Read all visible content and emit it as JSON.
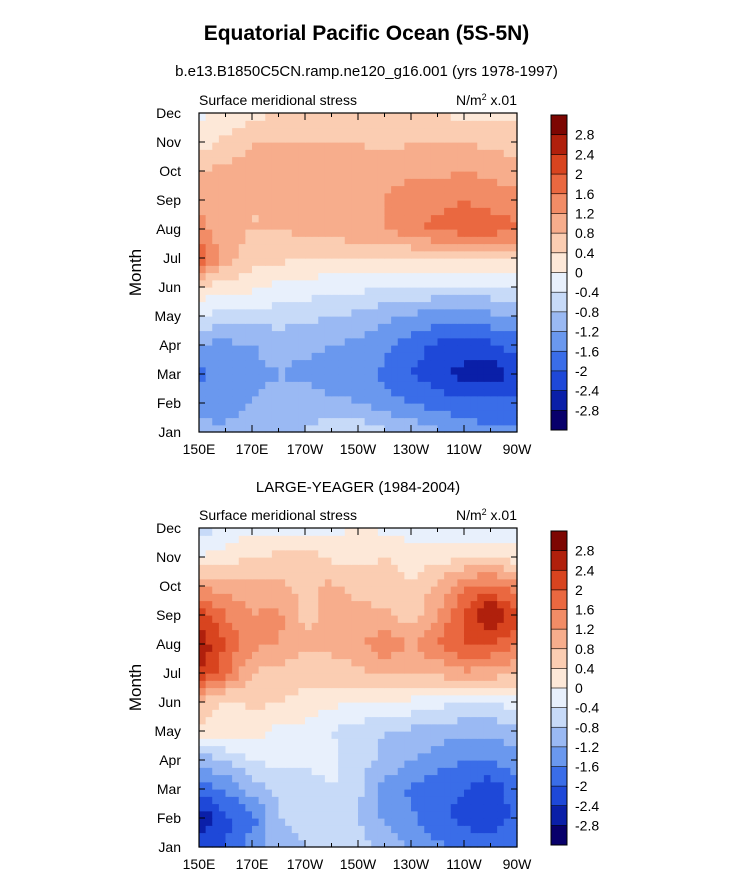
{
  "main_title": "Equatorial Pacific Ocean (5S-5N)",
  "subtitle": "b.e13.B1850C5CN.ramp.ne120_g16.001 (yrs 1978-1997)",
  "colors": {
    "scale": [
      "#08006b",
      "#0a1fa8",
      "#1e48d8",
      "#3a6de8",
      "#6a98ee",
      "#9ab9f3",
      "#c7daf8",
      "#e8f0fc",
      "#fde8d8",
      "#fbcdb2",
      "#f7ad8c",
      "#f28c66",
      "#ea6840",
      "#d8441f",
      "#b0200c",
      "#7d0602"
    ]
  },
  "chart_data": [
    {
      "type": "heatmap",
      "title": "",
      "left_label": "Surface meridional stress",
      "right_label_main": "N/m",
      "right_label_exp": "2",
      "right_label_tail": " x.01",
      "ylabel": "Month",
      "xticks": [
        "150E",
        "170E",
        "170W",
        "150W",
        "130W",
        "110W",
        "90W"
      ],
      "yticks": [
        "Jan",
        "Feb",
        "Mar",
        "Apr",
        "May",
        "Jun",
        "Jul",
        "Aug",
        "Sep",
        "Oct",
        "Nov",
        "Dec"
      ],
      "x": [
        150,
        160,
        170,
        180,
        190,
        200,
        210,
        220,
        230,
        240,
        250,
        260,
        270
      ],
      "y": [
        1,
        2,
        3,
        4,
        5,
        6,
        7,
        8,
        9,
        10,
        11,
        12
      ],
      "z": [
        [
          -1.0,
          -1.1,
          -1.0,
          -0.9,
          -0.8,
          -0.5,
          -0.5,
          -0.7,
          -0.9,
          -1.1,
          -1.3,
          -1.5,
          -1.5
        ],
        [
          -1.5,
          -1.4,
          -1.2,
          -1.1,
          -1.0,
          -1.1,
          -1.2,
          -1.4,
          -1.6,
          -1.8,
          -1.9,
          -1.9,
          -1.8
        ],
        [
          -1.7,
          -1.4,
          -1.3,
          -1.2,
          -1.3,
          -1.4,
          -1.5,
          -1.7,
          -2.0,
          -2.2,
          -2.6,
          -2.7,
          -2.3
        ],
        [
          -1.3,
          -1.3,
          -1.2,
          -1.1,
          -1.1,
          -1.2,
          -1.3,
          -1.5,
          -1.8,
          -2.1,
          -2.1,
          -2.1,
          -1.8
        ],
        [
          -0.4,
          -0.6,
          -0.6,
          -0.6,
          -0.7,
          -0.8,
          -0.9,
          -1.1,
          -1.3,
          -1.4,
          -1.4,
          -1.3,
          -1.2
        ],
        [
          0.3,
          0.2,
          0.1,
          -0.1,
          -0.2,
          -0.3,
          -0.3,
          -0.4,
          -0.4,
          -0.5,
          -0.5,
          -0.5,
          -0.4
        ],
        [
          2.0,
          1.0,
          0.6,
          0.5,
          0.4,
          0.4,
          0.4,
          0.4,
          0.4,
          0.5,
          0.4,
          0.4,
          0.4
        ],
        [
          1.4,
          0.9,
          0.8,
          0.8,
          0.9,
          1.0,
          1.1,
          1.2,
          1.5,
          1.7,
          1.8,
          1.8,
          1.7
        ],
        [
          1.1,
          0.8,
          0.8,
          0.8,
          0.9,
          1.0,
          1.1,
          1.2,
          1.5,
          1.5,
          1.6,
          1.5,
          1.3
        ],
        [
          0.8,
          0.9,
          1.0,
          1.0,
          1.0,
          1.0,
          1.0,
          1.0,
          1.1,
          1.1,
          1.2,
          1.1,
          1.0
        ],
        [
          0.2,
          0.5,
          0.8,
          0.8,
          0.8,
          0.8,
          0.8,
          0.7,
          0.8,
          0.8,
          0.8,
          0.7,
          0.6
        ],
        [
          -0.1,
          0.1,
          0.3,
          0.4,
          0.5,
          0.5,
          0.5,
          0.4,
          0.4,
          0.4,
          0.3,
          0.3,
          0.3
        ]
      ],
      "levels": [
        -2.8,
        -2.4,
        -2.0,
        -1.6,
        -1.2,
        -0.8,
        -0.4,
        0,
        0.4,
        0.8,
        1.2,
        1.6,
        2.0,
        2.4,
        2.8
      ],
      "colorbar_labels": [
        "2.8",
        "2.4",
        "2",
        "1.6",
        "1.2",
        "0.8",
        "0.4",
        "0",
        "-0.4",
        "-0.8",
        "-1.2",
        "-1.6",
        "-2",
        "-2.4",
        "-2.8"
      ]
    },
    {
      "type": "heatmap",
      "title": "LARGE-YEAGER (1984-2004)",
      "left_label": "Surface meridional stress",
      "right_label_main": "N/m",
      "right_label_exp": "2",
      "right_label_tail": " x.01",
      "ylabel": "Month",
      "xticks": [
        "150E",
        "170E",
        "170W",
        "150W",
        "130W",
        "110W",
        "90W"
      ],
      "yticks": [
        "Jan",
        "Feb",
        "Mar",
        "Apr",
        "May",
        "Jun",
        "Jul",
        "Aug",
        "Sep",
        "Oct",
        "Nov",
        "Dec"
      ],
      "x": [
        150,
        160,
        170,
        180,
        190,
        200,
        210,
        220,
        230,
        240,
        250,
        260,
        270
      ],
      "y": [
        1,
        2,
        3,
        4,
        5,
        6,
        7,
        8,
        9,
        10,
        11,
        12
      ],
      "z": [
        [
          -2.2,
          -2.0,
          -1.3,
          -1.0,
          -0.8,
          -0.6,
          -0.6,
          -0.9,
          -1.2,
          -1.5,
          -1.8,
          -1.8,
          -1.6
        ],
        [
          -2.8,
          -2.1,
          -1.8,
          -0.8,
          -0.7,
          -0.6,
          -0.8,
          -1.3,
          -1.5,
          -1.9,
          -2.1,
          -2.2,
          -1.9
        ],
        [
          -1.8,
          -1.6,
          -1.0,
          -0.7,
          -0.6,
          -0.4,
          -0.7,
          -1.4,
          -1.7,
          -1.9,
          -2.0,
          -2.3,
          -1.8
        ],
        [
          -1.1,
          -0.8,
          -0.4,
          -0.3,
          -0.3,
          -0.3,
          -0.6,
          -0.9,
          -1.2,
          -1.4,
          -1.6,
          -1.6,
          -1.4
        ],
        [
          0.3,
          0.2,
          0.2,
          -0.1,
          -0.2,
          -0.4,
          -0.6,
          -0.8,
          -0.9,
          -1.0,
          -1.1,
          -1.1,
          -0.9
        ],
        [
          0.7,
          0.3,
          0.5,
          0.4,
          0.3,
          0.1,
          0.0,
          0.1,
          -0.1,
          -0.3,
          -0.4,
          -0.4,
          -0.2
        ],
        [
          2.4,
          1.7,
          0.8,
          0.6,
          0.5,
          0.6,
          0.7,
          0.8,
          0.8,
          0.9,
          1.1,
          1.0,
          0.8
        ],
        [
          2.7,
          2.0,
          1.3,
          1.2,
          0.9,
          0.9,
          1.1,
          1.5,
          1.2,
          1.6,
          2.0,
          2.0,
          1.6
        ],
        [
          2.3,
          1.6,
          1.2,
          1.3,
          0.7,
          0.9,
          1.0,
          0.9,
          0.6,
          1.2,
          2.1,
          2.9,
          2.2
        ],
        [
          1.2,
          1.0,
          1.0,
          0.9,
          0.7,
          0.9,
          0.6,
          0.5,
          0.4,
          0.9,
          1.5,
          1.8,
          1.3
        ],
        [
          0.0,
          0.2,
          0.4,
          0.5,
          0.6,
          0.3,
          0.3,
          0.4,
          0.3,
          0.2,
          0.4,
          0.4,
          0.2
        ],
        [
          -0.6,
          -0.3,
          -0.1,
          -0.1,
          -0.1,
          -0.2,
          0.2,
          -0.2,
          -0.2,
          -0.3,
          -0.3,
          -0.3,
          -0.2
        ]
      ],
      "levels": [
        -2.8,
        -2.4,
        -2.0,
        -1.6,
        -1.2,
        -0.8,
        -0.4,
        0,
        0.4,
        0.8,
        1.2,
        1.6,
        2.0,
        2.4,
        2.8
      ],
      "colorbar_labels": [
        "2.8",
        "2.4",
        "2",
        "1.6",
        "1.2",
        "0.8",
        "0.4",
        "0",
        "-0.4",
        "-0.8",
        "-1.2",
        "-1.6",
        "-2",
        "-2.4",
        "-2.8"
      ]
    }
  ]
}
